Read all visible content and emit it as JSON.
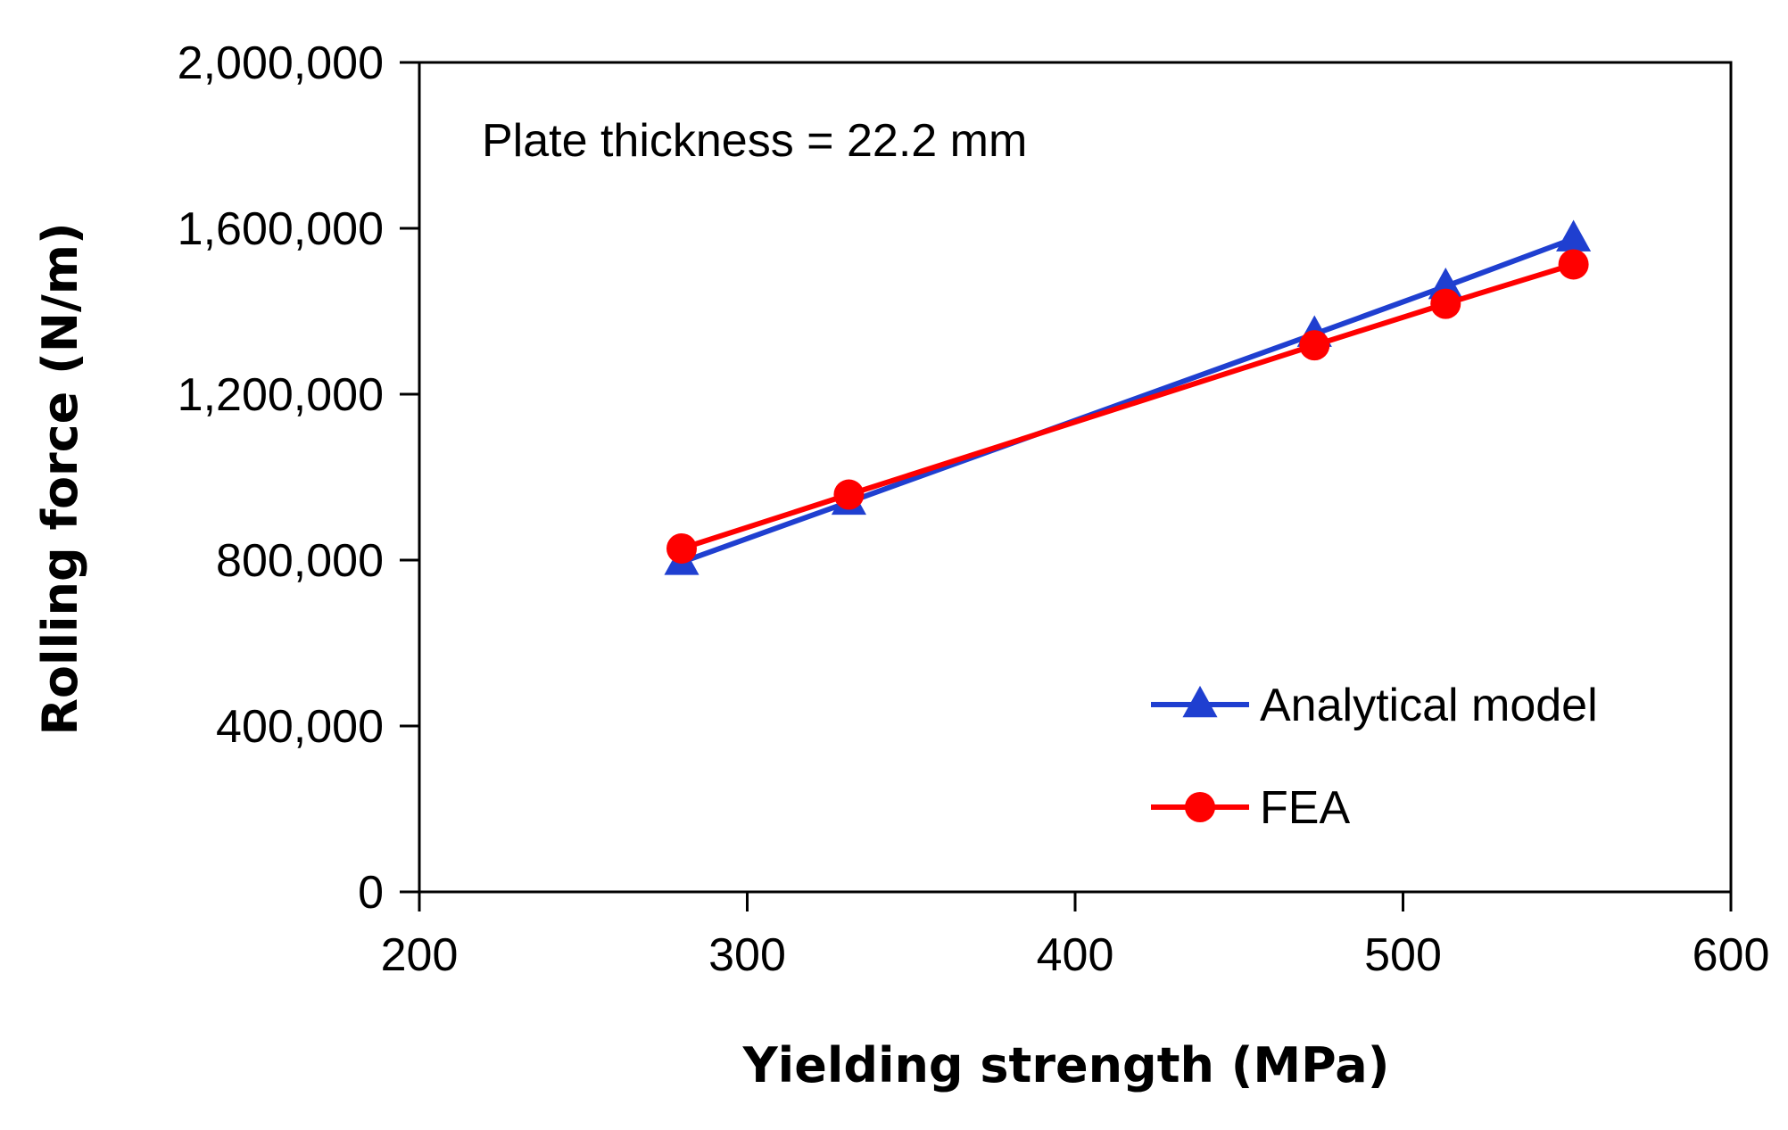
{
  "chart_data": {
    "type": "line",
    "title": "",
    "annotation": "Plate thickness = 22.2 mm",
    "xlabel": "Yielding strength  (MPa)",
    "ylabel": "Rolling force  (N/m)",
    "xlim": [
      200,
      600
    ],
    "ylim": [
      0,
      2000000
    ],
    "xticks": [
      200,
      300,
      400,
      500,
      600
    ],
    "yticks": [
      0,
      400000,
      800000,
      1200000,
      1600000,
      2000000
    ],
    "xtick_labels": [
      "200",
      "300",
      "400",
      "500",
      "600"
    ],
    "ytick_labels": [
      "0",
      "400,000",
      "800,000",
      "1,200,000",
      "1,600,000",
      "2,000,000"
    ],
    "grid": false,
    "legend_position": "bottom-right",
    "series": [
      {
        "name": "Analytical model",
        "marker": "triangle",
        "color": "#1f3fd0",
        "x": [
          280,
          331,
          473,
          513,
          552
        ],
        "y": [
          795000,
          940000,
          1345000,
          1460000,
          1575000
        ]
      },
      {
        "name": "FEA",
        "marker": "circle",
        "color": "#ff0000",
        "x": [
          280,
          331,
          473,
          513,
          552
        ],
        "y": [
          828000,
          958000,
          1318000,
          1418000,
          1513000
        ]
      }
    ]
  }
}
